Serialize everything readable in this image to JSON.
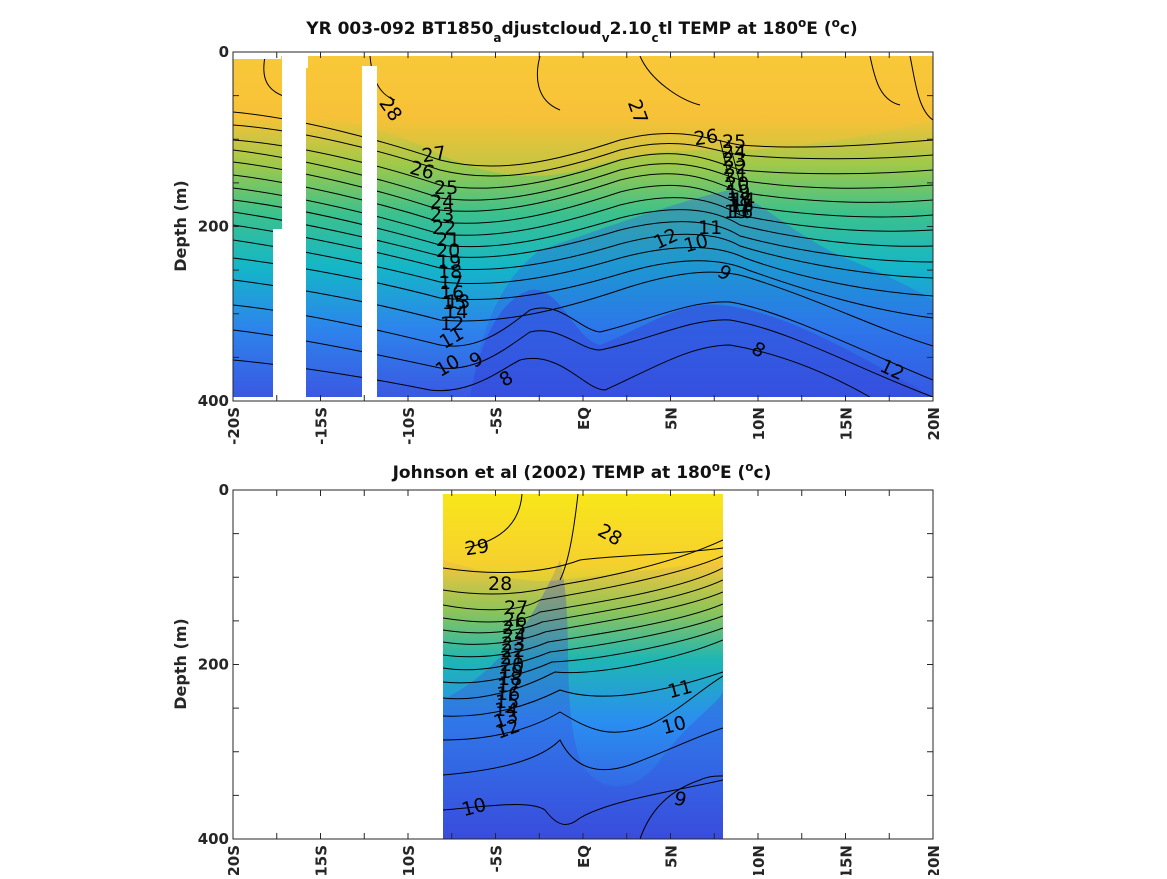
{
  "chart_data": [
    {
      "type": "heatmap",
      "title": {
        "main": "YR 003-092 BT1850",
        "sub1": "a",
        "mid1": "djustcloud",
        "sub2": "v",
        "mid2": "2.10",
        "sub3": "c",
        "mid3": "tl TEMP at 180",
        "sup1": "o",
        "mid4": "E (",
        "sup2": "o",
        "end": "c)"
      },
      "ylabel": "Depth (m)",
      "xlim": [
        -20,
        20
      ],
      "ylim": [
        0,
        400
      ],
      "x_tick_labels": [
        "-20S",
        "-15S",
        "-10S",
        "-5S",
        "EQ",
        "5N",
        "10N",
        "15N",
        "20N"
      ],
      "y_tick_labels": [
        "0",
        "200",
        "400"
      ],
      "contour_labels": [
        "28",
        "27",
        "26",
        "25",
        "24",
        "23",
        "22",
        "21",
        "20",
        "19",
        "18",
        "17",
        "16",
        "15",
        "14",
        "13",
        "12",
        "11",
        "10",
        "9",
        "8",
        "27",
        "26",
        "25",
        "12",
        "11",
        "10",
        "9",
        "8",
        "12",
        "24",
        "23",
        "22",
        "21",
        "20",
        "19",
        "18",
        "17",
        "16",
        "15",
        "14",
        "13"
      ],
      "colormap": {
        "warm": "#f9e01c",
        "mid": "#22c0a4",
        "cool": "#3b48d8"
      }
    },
    {
      "type": "heatmap",
      "title": {
        "main": "Johnson et al (2002) TEMP at 180",
        "sup1": "o",
        "mid": "E (",
        "sup2": "o",
        "end": "c)"
      },
      "ylabel": "Depth (m)",
      "xlim": [
        -20,
        20
      ],
      "ylim": [
        0,
        400
      ],
      "data_x_range": [
        -8,
        8
      ],
      "x_tick_labels": [
        "-20S",
        "-15S",
        "-10S",
        "-5S",
        "EQ",
        "5N",
        "10N",
        "15N",
        "20N"
      ],
      "y_tick_labels": [
        "0",
        "200",
        "400"
      ],
      "contour_labels": [
        "29",
        "28",
        "28",
        "27",
        "26",
        "25",
        "24",
        "23",
        "22",
        "21",
        "20",
        "19",
        "18",
        "17",
        "16",
        "15",
        "14",
        "13",
        "12",
        "11",
        "10",
        "10",
        "9"
      ]
    }
  ]
}
